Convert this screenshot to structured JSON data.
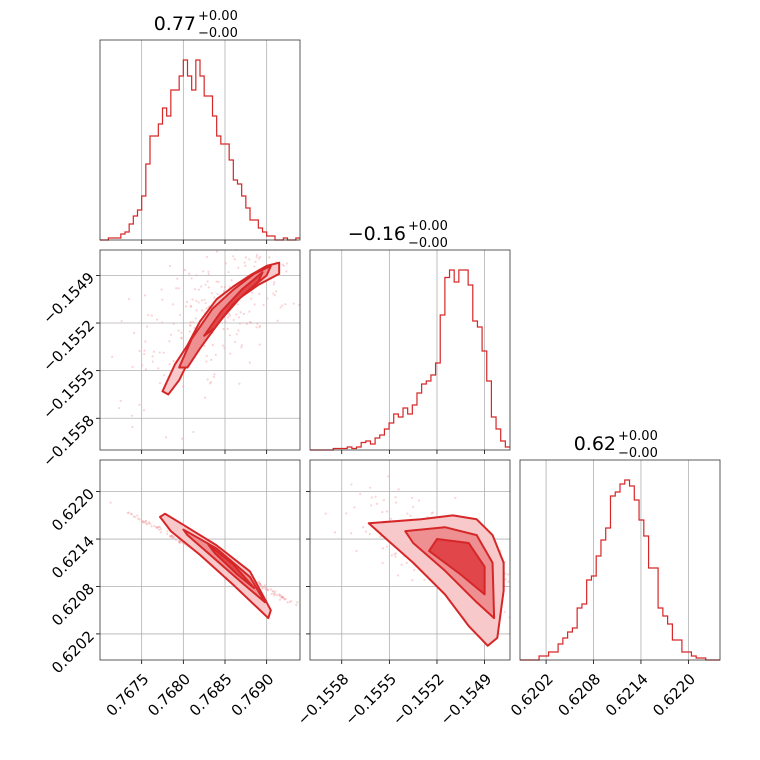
{
  "chart_data": {
    "type": "corner",
    "color": "#d62728",
    "grid": true,
    "parameters": [
      {
        "title_value": "0.77",
        "title_upper": "+0.00",
        "title_lower": "−0.00",
        "ticks": [
          0.7675,
          0.768,
          0.7685,
          0.769
        ],
        "tick_labels": [
          "0.7675",
          "0.7680",
          "0.7685",
          "0.7690"
        ],
        "range": [
          0.767,
          0.7694
        ]
      },
      {
        "title_value": "−0.16",
        "title_upper": "+0.00",
        "title_lower": "−0.00",
        "ticks": [
          -0.1558,
          -0.1555,
          -0.1552,
          -0.1549
        ],
        "tick_labels": [
          "−0.1558",
          "−0.1555",
          "−0.1552",
          "−0.1549"
        ],
        "range": [
          -0.156,
          -0.15474
        ]
      },
      {
        "title_value": "0.62",
        "title_upper": "+0.00",
        "title_lower": "−0.00",
        "ticks": [
          0.6202,
          0.6208,
          0.6214,
          0.622
        ],
        "tick_labels": [
          "0.6202",
          "0.6208",
          "0.6214",
          "0.6220"
        ],
        "range": [
          0.61987,
          0.6224
        ]
      }
    ],
    "histograms": [
      {
        "bins_from": 0.767,
        "bins_to": 0.7694,
        "counts": [
          0,
          0,
          1,
          1,
          1,
          3,
          4,
          8,
          12,
          15,
          22,
          38,
          52,
          52,
          58,
          66,
          62,
          75,
          75,
          82,
          90,
          82,
          75,
          90,
          82,
          72,
          72,
          62,
          52,
          48,
          48,
          40,
          30,
          28,
          22,
          16,
          10,
          10,
          6,
          4,
          2,
          2,
          0,
          0,
          1,
          0,
          0,
          1
        ]
      },
      {
        "bins_from": -0.156,
        "bins_to": -0.15474,
        "counts": [
          0,
          0,
          0,
          0,
          0,
          1,
          1,
          1,
          2,
          1,
          2,
          5,
          6,
          4,
          8,
          10,
          14,
          18,
          24,
          22,
          28,
          24,
          30,
          38,
          44,
          46,
          50,
          58,
          90,
          115,
          120,
          112,
          120,
          120,
          110,
          86,
          82,
          66,
          46,
          22,
          14,
          6,
          2
        ]
      },
      {
        "bins_from": 0.61987,
        "bins_to": 0.6224,
        "counts": [
          0,
          0,
          0,
          0,
          2,
          2,
          4,
          4,
          8,
          11,
          14,
          16,
          26,
          28,
          40,
          42,
          52,
          60,
          66,
          82,
          84,
          88,
          90,
          87,
          80,
          70,
          62,
          46,
          46,
          26,
          22,
          18,
          10,
          10,
          4,
          4,
          2,
          1,
          1,
          0,
          0,
          0
        ]
      }
    ],
    "pairs": [
      {
        "x_param": 0,
        "y_param": 1,
        "levels": [
          [
            [
              0.76775,
              -0.15563
            ],
            [
              0.7679,
              -0.15546
            ],
            [
              0.76805,
              -0.15534
            ],
            [
              0.7682,
              -0.15519
            ],
            [
              0.7684,
              -0.15505
            ],
            [
              0.7686,
              -0.15497
            ],
            [
              0.7688,
              -0.1549
            ],
            [
              0.769,
              -0.15484
            ],
            [
              0.76915,
              -0.15482
            ],
            [
              0.76915,
              -0.15489
            ],
            [
              0.7689,
              -0.15496
            ],
            [
              0.7686,
              -0.15507
            ],
            [
              0.7683,
              -0.15524
            ],
            [
              0.7681,
              -0.1554
            ],
            [
              0.76795,
              -0.15556
            ],
            [
              0.76782,
              -0.15565
            ]
          ],
          [
            [
              0.76795,
              -0.15548
            ],
            [
              0.7681,
              -0.1553
            ],
            [
              0.76835,
              -0.15511
            ],
            [
              0.7686,
              -0.15499
            ],
            [
              0.76885,
              -0.15489
            ],
            [
              0.76905,
              -0.15484
            ],
            [
              0.769,
              -0.1549
            ],
            [
              0.7687,
              -0.15503
            ],
            [
              0.76845,
              -0.15518
            ],
            [
              0.7682,
              -0.15536
            ],
            [
              0.76805,
              -0.15548
            ]
          ],
          [
            [
              0.76825,
              -0.15528
            ],
            [
              0.76845,
              -0.15513
            ],
            [
              0.7687,
              -0.15499
            ],
            [
              0.76895,
              -0.15488
            ],
            [
              0.7689,
              -0.15494
            ],
            [
              0.7686,
              -0.15508
            ],
            [
              0.76838,
              -0.15523
            ]
          ]
        ],
        "scatter_center": [
          0.76845,
          -0.1551
        ],
        "scatter_spread": [
          0.00055,
          0.00022
        ],
        "scatter_rotation": 38
      },
      {
        "x_param": 0,
        "y_param": 2,
        "levels": [
          [
            [
              0.76778,
              0.62172
            ],
            [
              0.768,
              0.62158
            ],
            [
              0.7684,
              0.62132
            ],
            [
              0.7688,
              0.62099
            ],
            [
              0.76905,
              0.6205
            ],
            [
              0.76902,
              0.6204
            ],
            [
              0.7686,
              0.62082
            ],
            [
              0.7682,
              0.6212
            ],
            [
              0.76785,
              0.6215
            ],
            [
              0.76772,
              0.62168
            ]
          ],
          [
            [
              0.768,
              0.62152
            ],
            [
              0.7684,
              0.62128
            ],
            [
              0.7688,
              0.62092
            ],
            [
              0.76898,
              0.6206
            ],
            [
              0.7687,
              0.62085
            ],
            [
              0.7683,
              0.62122
            ],
            [
              0.76805,
              0.62145
            ]
          ],
          [
            [
              0.7683,
              0.62133
            ],
            [
              0.7686,
              0.62108
            ],
            [
              0.76885,
              0.62078
            ],
            [
              0.76865,
              0.62095
            ],
            [
              0.76838,
              0.62122
            ]
          ]
        ],
        "scatter_center": [
          0.76835,
          0.62115
        ],
        "scatter_spread": [
          0.00055,
          0.00012
        ],
        "scatter_rotation": 0
      },
      {
        "x_param": 1,
        "y_param": 2,
        "levels": [
          [
            [
              -0.15563,
              0.6216
            ],
            [
              -0.1553,
              0.62165
            ],
            [
              -0.1551,
              0.6217
            ],
            [
              -0.15495,
              0.62165
            ],
            [
              -0.15485,
              0.62145
            ],
            [
              -0.15478,
              0.6211
            ],
            [
              -0.15478,
              0.62075
            ],
            [
              -0.15482,
              0.62015
            ],
            [
              -0.15488,
              0.62005
            ],
            [
              -0.155,
              0.6203
            ],
            [
              -0.15515,
              0.6207
            ],
            [
              -0.15535,
              0.6211
            ],
            [
              -0.15553,
              0.62142
            ]
          ],
          [
            [
              -0.1554,
              0.6215
            ],
            [
              -0.15515,
              0.62155
            ],
            [
              -0.15495,
              0.62145
            ],
            [
              -0.15485,
              0.6211
            ],
            [
              -0.15484,
              0.6204
            ],
            [
              -0.15495,
              0.6206
            ],
            [
              -0.15515,
              0.621
            ],
            [
              -0.15535,
              0.62135
            ]
          ],
          [
            [
              -0.1552,
              0.6214
            ],
            [
              -0.155,
              0.62135
            ],
            [
              -0.1549,
              0.62105
            ],
            [
              -0.1549,
              0.6207
            ],
            [
              -0.15505,
              0.62095
            ],
            [
              -0.15525,
              0.62125
            ]
          ]
        ],
        "scatter_center": [
          -0.1551,
          0.6212
        ],
        "scatter_spread": [
          0.0003,
          0.00025
        ],
        "scatter_rotation": 0
      }
    ]
  }
}
